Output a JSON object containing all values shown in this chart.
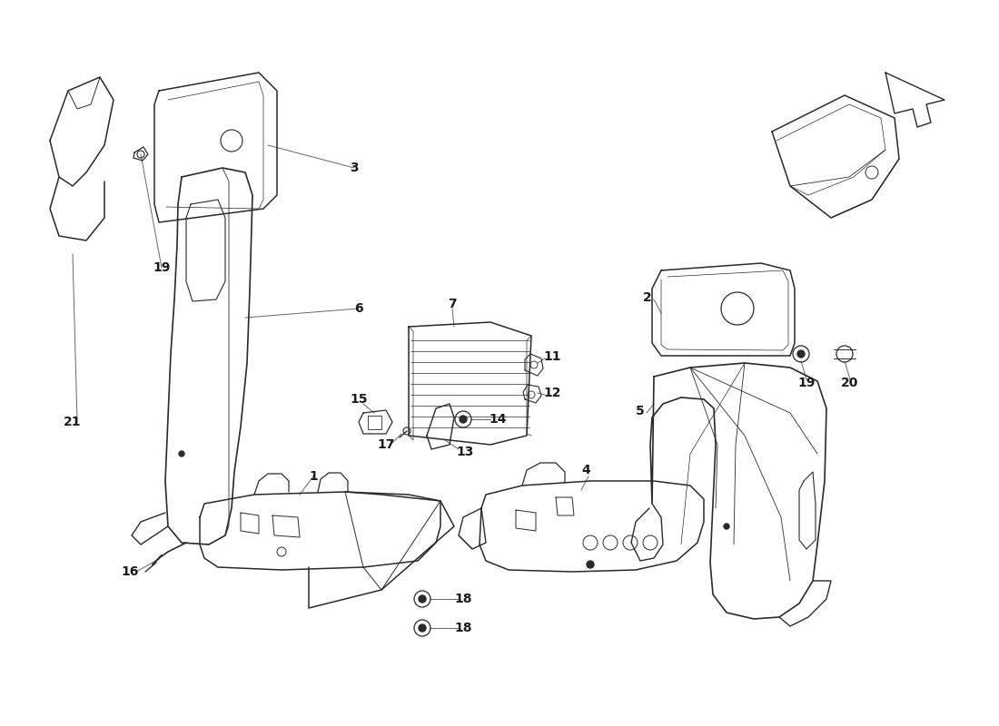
{
  "background_color": "#ffffff",
  "line_color": "#2a2a2a",
  "lw": 1.0,
  "fig_width": 11.0,
  "fig_height": 8.0,
  "dpi": 100,
  "xmax": 1100,
  "ymax": 800
}
